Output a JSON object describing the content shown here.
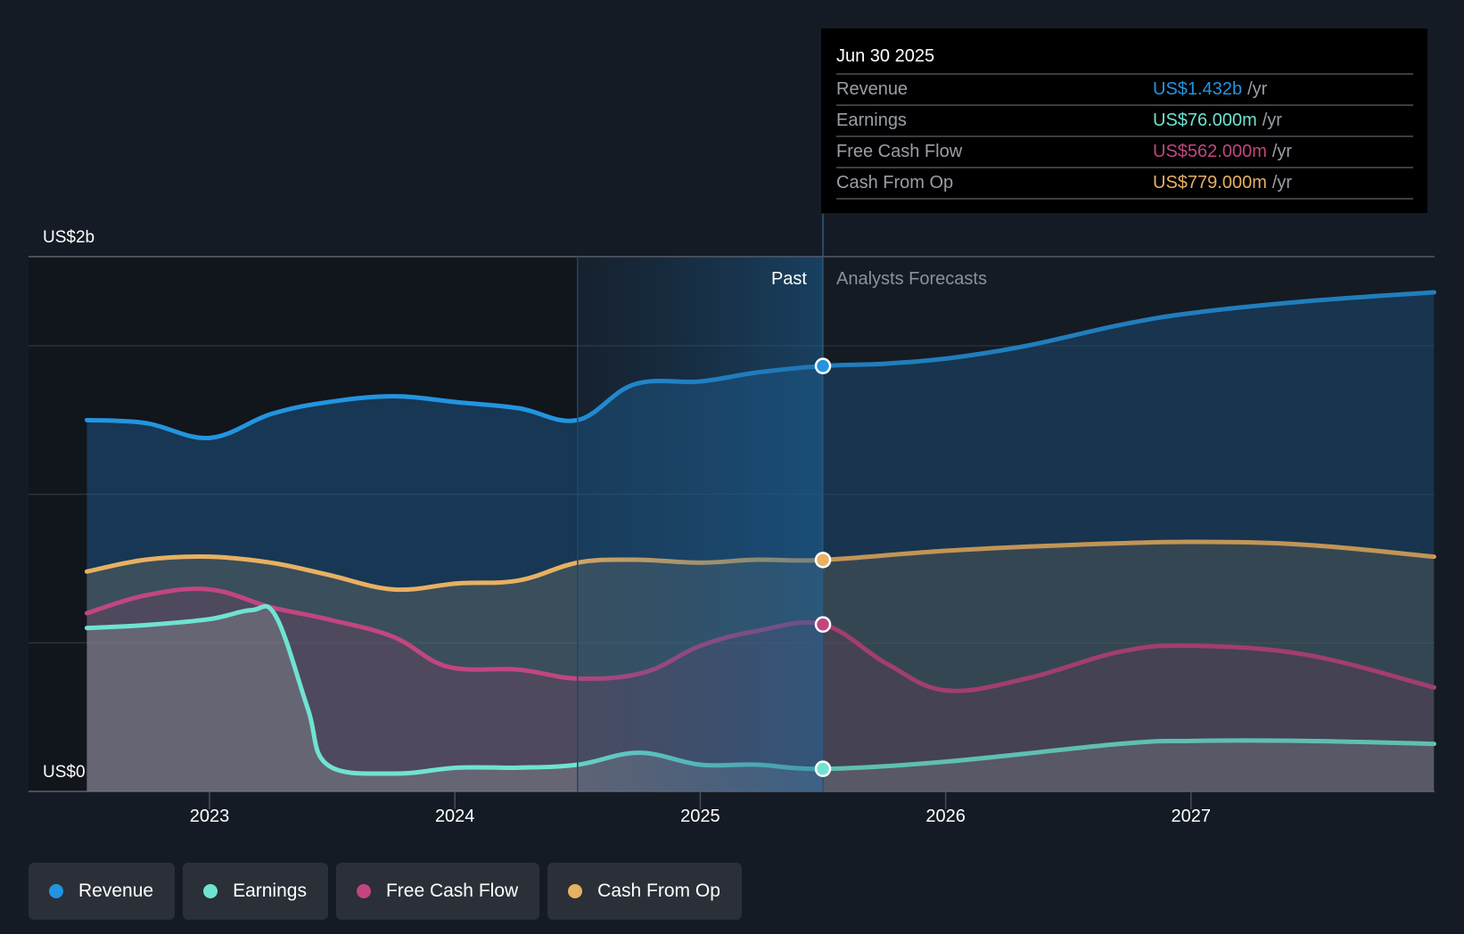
{
  "chart_data": {
    "type": "area",
    "title": "",
    "xlabel": "",
    "ylabel": "",
    "y_axis_labels": {
      "top": "US$2b",
      "bottom": "US$0"
    },
    "ylim": [
      0,
      1.8
    ],
    "y_unit": "US$ billions",
    "gridlines": [
      0,
      0.5,
      1.0,
      1.5,
      1.8
    ],
    "x_ticks": [
      {
        "label": "2023",
        "value": 2023.0
      },
      {
        "label": "2024",
        "value": 2024.0
      },
      {
        "label": "2025",
        "value": 2025.0
      },
      {
        "label": "2026",
        "value": 2026.0
      },
      {
        "label": "2027",
        "value": 2027.0
      }
    ],
    "xlim": [
      2022.27,
      2027.99
    ],
    "past_region": {
      "start": 2024.5,
      "end": 2025.5,
      "label": "Past"
    },
    "forecast_label": "Analysts Forecasts",
    "divider_x": 2025.5,
    "series": [
      {
        "name": "Revenue",
        "color": "#2394e0",
        "x": [
          2022.5,
          2022.74,
          2023.0,
          2023.25,
          2023.48,
          2023.75,
          2024.01,
          2024.26,
          2024.5,
          2024.73,
          2025.0,
          2025.23,
          2025.5,
          2025.76,
          2026.03,
          2026.33,
          2026.71,
          2027.0,
          2027.47,
          2027.99
        ],
        "values": [
          1.25,
          1.24,
          1.19,
          1.27,
          1.31,
          1.33,
          1.31,
          1.29,
          1.25,
          1.37,
          1.38,
          1.41,
          1.432,
          1.44,
          1.46,
          1.5,
          1.57,
          1.61,
          1.65,
          1.68
        ],
        "highlight": {
          "x": 2025.5,
          "value": 1.432
        }
      },
      {
        "name": "Cash From Op",
        "color": "#e8b062",
        "x": [
          2022.5,
          2022.74,
          2023.0,
          2023.25,
          2023.48,
          2023.75,
          2024.01,
          2024.26,
          2024.5,
          2024.73,
          2025.0,
          2025.23,
          2025.5,
          2026.0,
          2026.52,
          2027.0,
          2027.47,
          2027.99
        ],
        "values": [
          0.74,
          0.78,
          0.79,
          0.77,
          0.73,
          0.68,
          0.7,
          0.71,
          0.77,
          0.78,
          0.77,
          0.78,
          0.779,
          0.81,
          0.83,
          0.84,
          0.83,
          0.79
        ],
        "highlight": {
          "x": 2025.5,
          "value": 0.779
        }
      },
      {
        "name": "Free Cash Flow",
        "color": "#c1467f",
        "x": [
          2022.5,
          2022.74,
          2023.0,
          2023.25,
          2023.48,
          2023.75,
          2023.97,
          2024.26,
          2024.5,
          2024.77,
          2025.0,
          2025.23,
          2025.5,
          2025.76,
          2026.0,
          2026.33,
          2026.71,
          2027.0,
          2027.47,
          2027.99
        ],
        "values": [
          0.6,
          0.66,
          0.68,
          0.62,
          0.58,
          0.52,
          0.42,
          0.41,
          0.38,
          0.4,
          0.49,
          0.54,
          0.562,
          0.43,
          0.34,
          0.38,
          0.47,
          0.49,
          0.46,
          0.35
        ],
        "highlight": {
          "x": 2025.5,
          "value": 0.562
        }
      },
      {
        "name": "Earnings",
        "color": "#6fe3d2",
        "x": [
          2022.5,
          2022.74,
          2023.0,
          2023.17,
          2023.27,
          2023.4,
          2023.48,
          2023.75,
          2024.01,
          2024.26,
          2024.5,
          2024.75,
          2025.0,
          2025.23,
          2025.5,
          2026.0,
          2026.71,
          2027.0,
          2027.47,
          2027.99
        ],
        "values": [
          0.55,
          0.56,
          0.58,
          0.61,
          0.59,
          0.28,
          0.09,
          0.06,
          0.08,
          0.08,
          0.09,
          0.13,
          0.09,
          0.09,
          0.076,
          0.1,
          0.16,
          0.17,
          0.17,
          0.16
        ],
        "highlight": {
          "x": 2025.5,
          "value": 0.076
        }
      }
    ]
  },
  "tooltip": {
    "date": "Jun 30 2025",
    "rows": [
      {
        "name": "Revenue",
        "value": "US$1.432b",
        "unit": "/yr",
        "color": "#2394e0"
      },
      {
        "name": "Earnings",
        "value": "US$76.000m",
        "unit": "/yr",
        "color": "#6fe3d2"
      },
      {
        "name": "Free Cash Flow",
        "value": "US$562.000m",
        "unit": "/yr",
        "color": "#c1467f"
      },
      {
        "name": "Cash From Op",
        "value": "US$779.000m",
        "unit": "/yr",
        "color": "#e8b062"
      }
    ]
  },
  "legend": [
    {
      "label": "Revenue",
      "color": "#2394e0"
    },
    {
      "label": "Earnings",
      "color": "#6fe3d2"
    },
    {
      "label": "Free Cash Flow",
      "color": "#c1467f"
    },
    {
      "label": "Cash From Op",
      "color": "#e8b062"
    }
  ]
}
